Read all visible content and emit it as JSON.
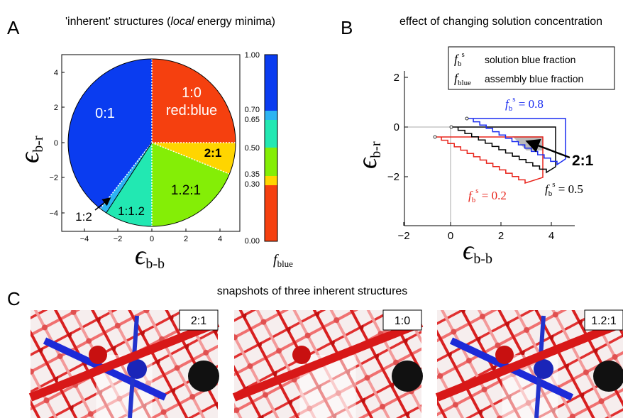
{
  "panel_a": {
    "letter": "A",
    "title": {
      "before": "'inherent' structures (",
      "italic": "local",
      "after": " energy minima)"
    },
    "x_label": {
      "symbol": "ϵ",
      "sub": "b-b"
    },
    "y_label": {
      "symbol": "ϵ",
      "sub": "b-r"
    },
    "x_ticks": [
      "−4",
      "−2",
      "0",
      "2",
      "4"
    ],
    "y_ticks": [
      "4",
      "2",
      "0",
      "−2",
      "−4"
    ],
    "regions": [
      "0:1",
      "1:0",
      "red:blue",
      "2:1",
      "1.2:1",
      "1:1.2",
      "1:2"
    ],
    "colorbar": {
      "labels": [
        "1.00",
        "0.70",
        "0.65",
        "0.50",
        "0.35",
        "0.30",
        "0.00"
      ],
      "title": {
        "symbol": "f",
        "sub": "blue"
      }
    }
  },
  "panel_b": {
    "letter": "B",
    "title": "effect of changing solution concentration",
    "legend": [
      {
        "symbol": "f",
        "sub": "b",
        "sup": "s",
        "text": "solution blue fraction"
      },
      {
        "symbol": "f",
        "sub": "blue",
        "text": "assembly blue fraction"
      }
    ],
    "x_label": {
      "symbol": "ϵ",
      "sub": "b-b"
    },
    "y_label": {
      "symbol": "ϵ",
      "sub": "b-r"
    },
    "x_ticks": [
      "−2",
      "0",
      "2",
      "4"
    ],
    "y_ticks": [
      "2",
      "0",
      "−2"
    ],
    "annotations": [
      {
        "symbol": "f",
        "sub": "b",
        "sup": "s",
        "value": " = 0.8"
      },
      {
        "symbol": "f",
        "sub": "b",
        "sup": "s",
        "value": " = 0.2"
      },
      {
        "symbol": "f",
        "sub": "b",
        "sup": "s",
        "value": " = 0.5"
      }
    ],
    "structure_label": "2:1"
  },
  "panel_c": {
    "letter": "C",
    "title": "snapshots of three inherent structures",
    "snapshots": [
      "2:1",
      "1:0",
      "1.2:1"
    ]
  }
}
